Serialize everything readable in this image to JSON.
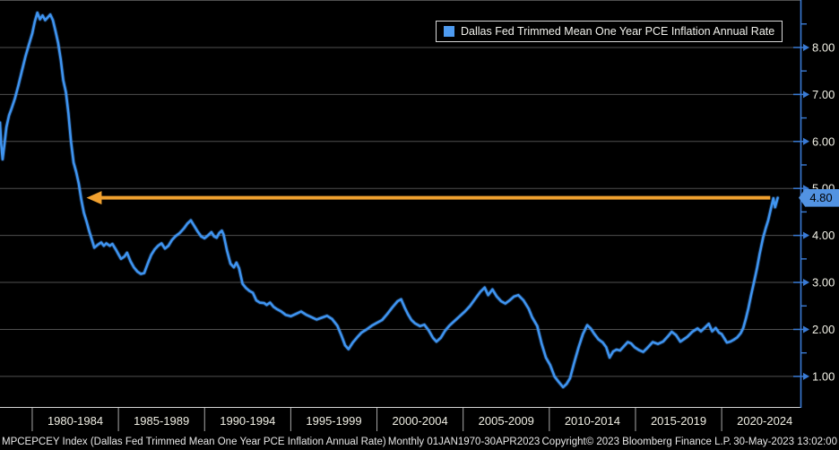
{
  "legend": {
    "label": "Dallas Fed Trimmed Mean One Year PCE Inflation Annual Rate",
    "swatch_color": "#4e9bf0"
  },
  "annotation": {
    "value_label": "4.80",
    "value": 4.8,
    "badge_bg": "#5293e2",
    "arrow_color": "#f0a02f",
    "arrow_from_year": 2022.82,
    "arrow_tip_year": 1983.25
  },
  "y_axis": {
    "major_ticks": [
      {
        "label": "8.00",
        "value": 8
      },
      {
        "label": "7.00",
        "value": 7
      },
      {
        "label": "6.00",
        "value": 6
      },
      {
        "label": "5.00",
        "value": 5
      },
      {
        "label": "4.00",
        "value": 4
      },
      {
        "label": "3.00",
        "value": 3
      },
      {
        "label": "2.00",
        "value": 2
      },
      {
        "label": "1.00",
        "value": 1
      }
    ],
    "minor_values": [
      8.5,
      7.5,
      6.5,
      5.5,
      4.5,
      3.5,
      2.5,
      1.5
    ],
    "axis_color": "#3a7bd5",
    "label_color": "#f2f1e6",
    "gridline_color": "#4f4f4f"
  },
  "x_axis": {
    "group_labels": [
      {
        "label": "1980-1984",
        "center_year": 1982.5
      },
      {
        "label": "1985-1989",
        "center_year": 1987.5
      },
      {
        "label": "1990-1994",
        "center_year": 1992.5
      },
      {
        "label": "1995-1999",
        "center_year": 1997.5
      },
      {
        "label": "2000-2004",
        "center_year": 2002.5
      },
      {
        "label": "2005-2009",
        "center_year": 2007.5
      },
      {
        "label": "2010-2014",
        "center_year": 2012.5
      },
      {
        "label": "2015-2019",
        "center_year": 2017.5
      },
      {
        "label": "2020-2024",
        "center_year": 2022.5
      }
    ],
    "boundary_years": [
      1980,
      1985,
      1990,
      1995,
      2000,
      2005,
      2010,
      2015,
      2020
    ],
    "year_tick_first": 1979,
    "year_tick_last": 2024,
    "axis_color": "#d6d6d6",
    "label_color": "#efeee3"
  },
  "footer": {
    "left": "MPCEPCEY Index (Dallas Fed Trimmed Mean One Year PCE Inflation Annual Rate)",
    "periodicity": "Monthly 01JAN1970-30APR2023",
    "copyright": "Copyright© 2023 Bloomberg Finance L.P.",
    "timestamp": "30-May-2023 13:02:00"
  },
  "chart_data": {
    "type": "line",
    "title": "",
    "xlabel": "",
    "ylabel": "",
    "legend_position": "top-right",
    "grid": true,
    "xlim": [
      1978.13,
      2024.57
    ],
    "ylim": [
      0.33,
      9.01
    ],
    "gridline_values": [
      1,
      2,
      3,
      4,
      5,
      6,
      7,
      8,
      9
    ],
    "last_value": 4.8,
    "series": [
      {
        "name": "Dallas Fed Trimmed Mean One Year PCE Inflation Annual Rate",
        "color": "#3f94f0",
        "points": [
          [
            1978.13,
            6.4
          ],
          [
            1978.2,
            5.95
          ],
          [
            1978.28,
            5.62
          ],
          [
            1978.4,
            5.98
          ],
          [
            1978.5,
            6.3
          ],
          [
            1978.65,
            6.55
          ],
          [
            1978.8,
            6.7
          ],
          [
            1979.0,
            6.92
          ],
          [
            1979.2,
            7.2
          ],
          [
            1979.4,
            7.5
          ],
          [
            1979.6,
            7.8
          ],
          [
            1979.8,
            8.05
          ],
          [
            1980.0,
            8.3
          ],
          [
            1980.15,
            8.55
          ],
          [
            1980.3,
            8.74
          ],
          [
            1980.45,
            8.6
          ],
          [
            1980.6,
            8.68
          ],
          [
            1980.75,
            8.58
          ],
          [
            1980.9,
            8.64
          ],
          [
            1981.05,
            8.7
          ],
          [
            1981.2,
            8.58
          ],
          [
            1981.35,
            8.35
          ],
          [
            1981.5,
            8.1
          ],
          [
            1981.65,
            7.75
          ],
          [
            1981.8,
            7.3
          ],
          [
            1981.95,
            7.05
          ],
          [
            1982.1,
            6.6
          ],
          [
            1982.25,
            6.0
          ],
          [
            1982.4,
            5.55
          ],
          [
            1982.55,
            5.35
          ],
          [
            1982.7,
            5.1
          ],
          [
            1982.85,
            4.75
          ],
          [
            1983.0,
            4.48
          ],
          [
            1983.15,
            4.3
          ],
          [
            1983.3,
            4.1
          ],
          [
            1983.45,
            3.92
          ],
          [
            1983.6,
            3.74
          ],
          [
            1983.8,
            3.8
          ],
          [
            1984.0,
            3.85
          ],
          [
            1984.15,
            3.78
          ],
          [
            1984.3,
            3.83
          ],
          [
            1984.5,
            3.78
          ],
          [
            1984.65,
            3.82
          ],
          [
            1984.85,
            3.7
          ],
          [
            1985.0,
            3.6
          ],
          [
            1985.15,
            3.5
          ],
          [
            1985.35,
            3.55
          ],
          [
            1985.5,
            3.63
          ],
          [
            1985.7,
            3.45
          ],
          [
            1985.9,
            3.32
          ],
          [
            1986.1,
            3.23
          ],
          [
            1986.3,
            3.18
          ],
          [
            1986.5,
            3.2
          ],
          [
            1986.7,
            3.4
          ],
          [
            1986.9,
            3.58
          ],
          [
            1987.1,
            3.7
          ],
          [
            1987.3,
            3.78
          ],
          [
            1987.5,
            3.83
          ],
          [
            1987.7,
            3.72
          ],
          [
            1987.9,
            3.78
          ],
          [
            1988.1,
            3.9
          ],
          [
            1988.3,
            3.98
          ],
          [
            1988.55,
            4.05
          ],
          [
            1988.8,
            4.15
          ],
          [
            1989.0,
            4.25
          ],
          [
            1989.2,
            4.32
          ],
          [
            1989.4,
            4.2
          ],
          [
            1989.6,
            4.08
          ],
          [
            1989.8,
            3.98
          ],
          [
            1990.0,
            3.94
          ],
          [
            1990.2,
            4.0
          ],
          [
            1990.4,
            4.07
          ],
          [
            1990.55,
            3.98
          ],
          [
            1990.7,
            3.95
          ],
          [
            1990.85,
            4.05
          ],
          [
            1991.0,
            4.1
          ],
          [
            1991.1,
            4.02
          ],
          [
            1991.3,
            3.68
          ],
          [
            1991.5,
            3.4
          ],
          [
            1991.7,
            3.32
          ],
          [
            1991.85,
            3.42
          ],
          [
            1992.0,
            3.3
          ],
          [
            1992.2,
            2.97
          ],
          [
            1992.4,
            2.88
          ],
          [
            1992.6,
            2.82
          ],
          [
            1992.8,
            2.78
          ],
          [
            1993.0,
            2.62
          ],
          [
            1993.2,
            2.57
          ],
          [
            1993.45,
            2.56
          ],
          [
            1993.6,
            2.52
          ],
          [
            1993.8,
            2.57
          ],
          [
            1994.0,
            2.48
          ],
          [
            1994.2,
            2.43
          ],
          [
            1994.45,
            2.38
          ],
          [
            1994.7,
            2.31
          ],
          [
            1995.0,
            2.28
          ],
          [
            1995.3,
            2.33
          ],
          [
            1995.6,
            2.38
          ],
          [
            1995.9,
            2.31
          ],
          [
            1996.2,
            2.26
          ],
          [
            1996.5,
            2.21
          ],
          [
            1996.8,
            2.25
          ],
          [
            1997.1,
            2.29
          ],
          [
            1997.4,
            2.22
          ],
          [
            1997.7,
            2.08
          ],
          [
            1997.95,
            1.86
          ],
          [
            1998.15,
            1.66
          ],
          [
            1998.35,
            1.58
          ],
          [
            1998.6,
            1.72
          ],
          [
            1998.85,
            1.83
          ],
          [
            1999.1,
            1.93
          ],
          [
            1999.4,
            2.0
          ],
          [
            1999.7,
            2.08
          ],
          [
            2000.0,
            2.14
          ],
          [
            2000.3,
            2.2
          ],
          [
            2000.6,
            2.33
          ],
          [
            2000.9,
            2.47
          ],
          [
            2001.2,
            2.6
          ],
          [
            2001.4,
            2.64
          ],
          [
            2001.6,
            2.47
          ],
          [
            2001.8,
            2.32
          ],
          [
            2002.0,
            2.2
          ],
          [
            2002.2,
            2.13
          ],
          [
            2002.5,
            2.07
          ],
          [
            2002.75,
            2.1
          ],
          [
            2003.0,
            1.98
          ],
          [
            2003.25,
            1.82
          ],
          [
            2003.45,
            1.74
          ],
          [
            2003.7,
            1.82
          ],
          [
            2003.95,
            1.97
          ],
          [
            2004.2,
            2.08
          ],
          [
            2004.5,
            2.18
          ],
          [
            2004.8,
            2.28
          ],
          [
            2005.1,
            2.38
          ],
          [
            2005.4,
            2.5
          ],
          [
            2005.7,
            2.65
          ],
          [
            2006.0,
            2.8
          ],
          [
            2006.25,
            2.89
          ],
          [
            2006.45,
            2.73
          ],
          [
            2006.7,
            2.85
          ],
          [
            2006.95,
            2.7
          ],
          [
            2007.2,
            2.6
          ],
          [
            2007.45,
            2.55
          ],
          [
            2007.7,
            2.62
          ],
          [
            2007.95,
            2.7
          ],
          [
            2008.2,
            2.73
          ],
          [
            2008.5,
            2.62
          ],
          [
            2008.8,
            2.44
          ],
          [
            2009.0,
            2.26
          ],
          [
            2009.3,
            2.07
          ],
          [
            2009.55,
            1.7
          ],
          [
            2009.8,
            1.4
          ],
          [
            2010.05,
            1.24
          ],
          [
            2010.3,
            1.0
          ],
          [
            2010.55,
            0.88
          ],
          [
            2010.8,
            0.77
          ],
          [
            2011.0,
            0.84
          ],
          [
            2011.2,
            0.96
          ],
          [
            2011.45,
            1.3
          ],
          [
            2011.7,
            1.62
          ],
          [
            2011.95,
            1.9
          ],
          [
            2012.2,
            2.09
          ],
          [
            2012.4,
            2.02
          ],
          [
            2012.6,
            1.91
          ],
          [
            2012.85,
            1.79
          ],
          [
            2013.1,
            1.72
          ],
          [
            2013.3,
            1.62
          ],
          [
            2013.5,
            1.4
          ],
          [
            2013.7,
            1.53
          ],
          [
            2013.9,
            1.57
          ],
          [
            2014.1,
            1.55
          ],
          [
            2014.3,
            1.63
          ],
          [
            2014.55,
            1.73
          ],
          [
            2014.75,
            1.7
          ],
          [
            2014.95,
            1.62
          ],
          [
            2015.2,
            1.56
          ],
          [
            2015.45,
            1.52
          ],
          [
            2015.7,
            1.61
          ],
          [
            2016.0,
            1.73
          ],
          [
            2016.3,
            1.69
          ],
          [
            2016.6,
            1.74
          ],
          [
            2016.85,
            1.84
          ],
          [
            2017.1,
            1.95
          ],
          [
            2017.35,
            1.88
          ],
          [
            2017.6,
            1.74
          ],
          [
            2017.8,
            1.79
          ],
          [
            2018.0,
            1.84
          ],
          [
            2018.3,
            1.95
          ],
          [
            2018.6,
            2.02
          ],
          [
            2018.8,
            1.96
          ],
          [
            2019.0,
            2.03
          ],
          [
            2019.25,
            2.12
          ],
          [
            2019.45,
            1.96
          ],
          [
            2019.65,
            2.03
          ],
          [
            2019.85,
            1.93
          ],
          [
            2020.0,
            1.9
          ],
          [
            2020.3,
            1.72
          ],
          [
            2020.5,
            1.74
          ],
          [
            2020.7,
            1.78
          ],
          [
            2020.9,
            1.83
          ],
          [
            2021.1,
            1.92
          ],
          [
            2021.25,
            2.03
          ],
          [
            2021.4,
            2.22
          ],
          [
            2021.55,
            2.45
          ],
          [
            2021.7,
            2.72
          ],
          [
            2021.9,
            3.05
          ],
          [
            2022.05,
            3.3
          ],
          [
            2022.2,
            3.6
          ],
          [
            2022.4,
            3.95
          ],
          [
            2022.55,
            4.15
          ],
          [
            2022.7,
            4.32
          ],
          [
            2022.85,
            4.56
          ],
          [
            2023.0,
            4.79
          ],
          [
            2023.1,
            4.6
          ],
          [
            2023.25,
            4.8
          ]
        ]
      }
    ]
  }
}
